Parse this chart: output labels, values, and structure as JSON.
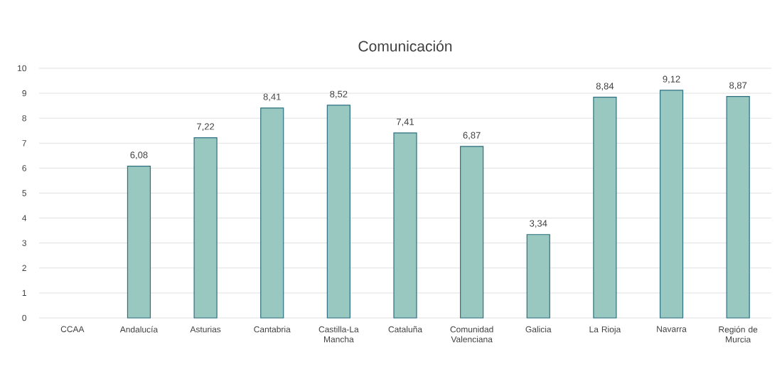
{
  "chart_data": {
    "type": "bar",
    "title": "Comunicación",
    "categories": [
      "CCAA",
      "Andalucía",
      "Asturias",
      "Cantabria",
      "Castilla-La Mancha",
      "Cataluña",
      "Comunidad Valenciana",
      "Galicia",
      "La Rioja",
      "Navarra",
      "Región de Murcia"
    ],
    "values": [
      null,
      6.08,
      7.22,
      8.41,
      8.52,
      7.41,
      6.87,
      3.34,
      8.84,
      9.12,
      8.87
    ],
    "value_labels": [
      null,
      "6,08",
      "7,22",
      "8,41",
      "8,52",
      "7,41",
      "6,87",
      "3,34",
      "8,84",
      "9,12",
      "8,87"
    ],
    "color": "#98c8c0",
    "ylim": [
      0,
      10
    ],
    "yticks": [
      0,
      1,
      2,
      3,
      4,
      5,
      6,
      7,
      8,
      9,
      10
    ],
    "grid": "y"
  }
}
